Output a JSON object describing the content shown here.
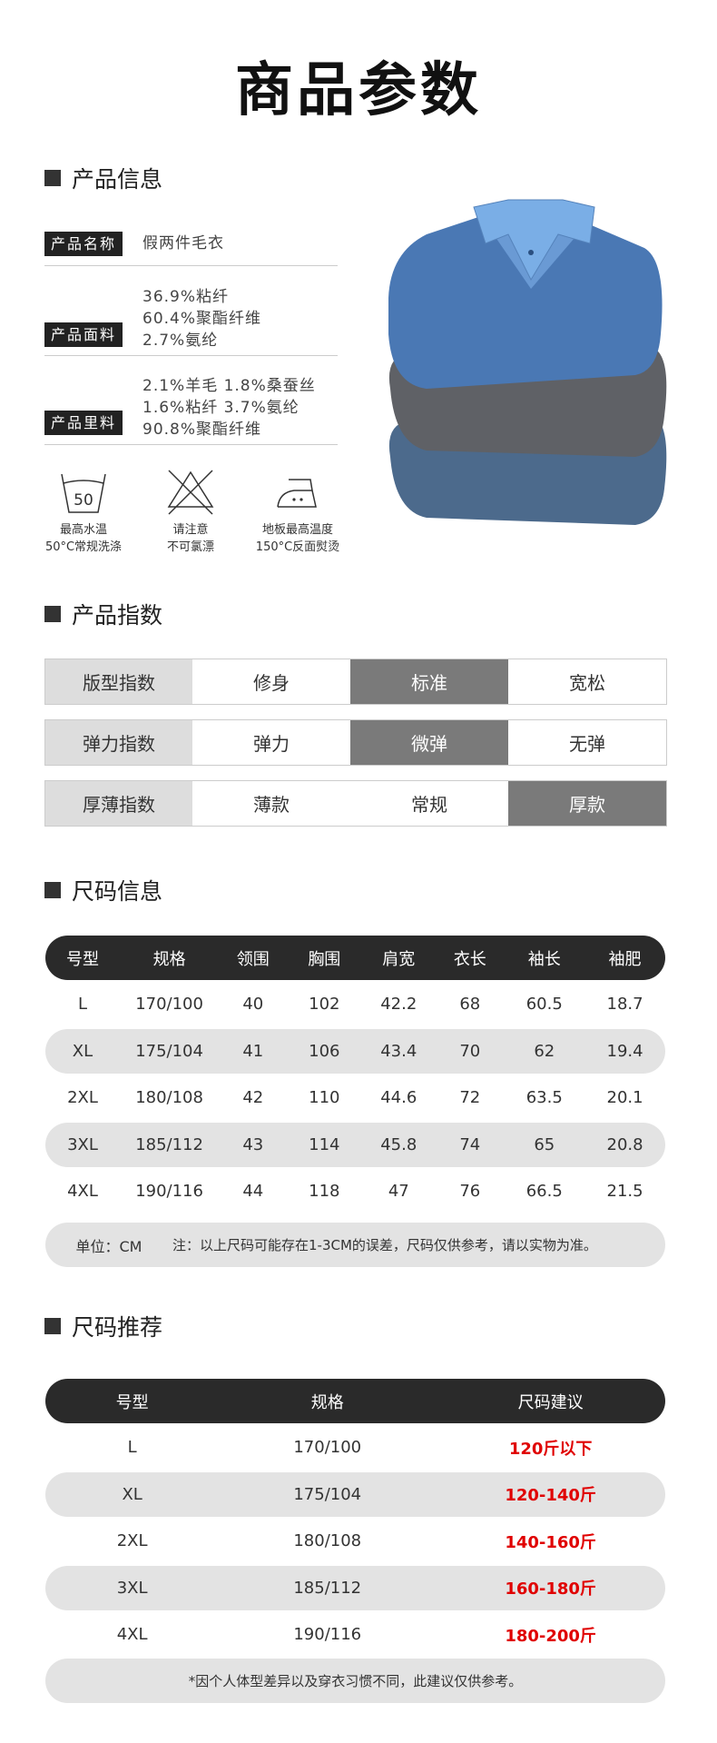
{
  "title": "商品参数",
  "sections": {
    "info": "产品信息",
    "index": "产品指数",
    "size_info": "尺码信息",
    "size_rec": "尺码推荐"
  },
  "info": {
    "name": {
      "label": "产品名称",
      "value": "假两件毛衣"
    },
    "fabric": {
      "label": "产品面料",
      "lines": [
        "36.9%粘纤",
        "60.4%聚酯纤维",
        "2.7%氨纶"
      ]
    },
    "lining": {
      "label": "产品里料",
      "lines": [
        "2.1%羊毛 1.8%桑蚕丝",
        "1.6%粘纤  3.7%氨纶",
        "90.8%聚酯纤维"
      ]
    }
  },
  "care": [
    {
      "icon": "wash-50-icon",
      "number": "50",
      "lines": [
        "最高水温",
        "50°C常规洗涤"
      ]
    },
    {
      "icon": "no-bleach-icon",
      "lines": [
        "请注意",
        "不可氯漂"
      ]
    },
    {
      "icon": "iron-icon",
      "lines": [
        "地板最高温度",
        "150°C反面熨烫"
      ]
    }
  ],
  "indices": [
    {
      "label": "版型指数",
      "options": [
        "修身",
        "标准",
        "宽松"
      ],
      "selected": 1
    },
    {
      "label": "弹力指数",
      "options": [
        "弹力",
        "微弹",
        "无弹"
      ],
      "selected": 1
    },
    {
      "label": "厚薄指数",
      "options": [
        "薄款",
        "常规",
        "厚款"
      ],
      "selected": 2
    }
  ],
  "size_table": {
    "headers": [
      "号型",
      "规格",
      "领围",
      "胸围",
      "肩宽",
      "衣长",
      "袖长",
      "袖肥"
    ],
    "rows": [
      [
        "L",
        "170/100",
        "40",
        "102",
        "42.2",
        "68",
        "60.5",
        "18.7"
      ],
      [
        "XL",
        "175/104",
        "41",
        "106",
        "43.4",
        "70",
        "62",
        "19.4"
      ],
      [
        "2XL",
        "180/108",
        "42",
        "110",
        "44.6",
        "72",
        "63.5",
        "20.1"
      ],
      [
        "3XL",
        "185/112",
        "43",
        "114",
        "45.8",
        "74",
        "65",
        "20.8"
      ],
      [
        "4XL",
        "190/116",
        "44",
        "118",
        "47",
        "76",
        "66.5",
        "21.5"
      ]
    ],
    "unit": "单位：CM",
    "note": "注：以上尺码可能存在1-3CM的误差，尺码仅供参考，请以实物为准。"
  },
  "rec_table": {
    "headers": [
      "号型",
      "规格",
      "尺码建议"
    ],
    "rows": [
      [
        "L",
        "170/100",
        "120斤以下"
      ],
      [
        "XL",
        "175/104",
        "120-140斤"
      ],
      [
        "2XL",
        "180/108",
        "140-160斤"
      ],
      [
        "3XL",
        "185/112",
        "160-180斤"
      ],
      [
        "4XL",
        "190/116",
        "180-200斤"
      ]
    ],
    "note": "*因个人体型差异以及穿衣习惯不同，此建议仅供参考。"
  },
  "colors": {
    "highlight": "#e00000",
    "dark": "#2a2a2a",
    "selected": "#7a7a7a"
  }
}
